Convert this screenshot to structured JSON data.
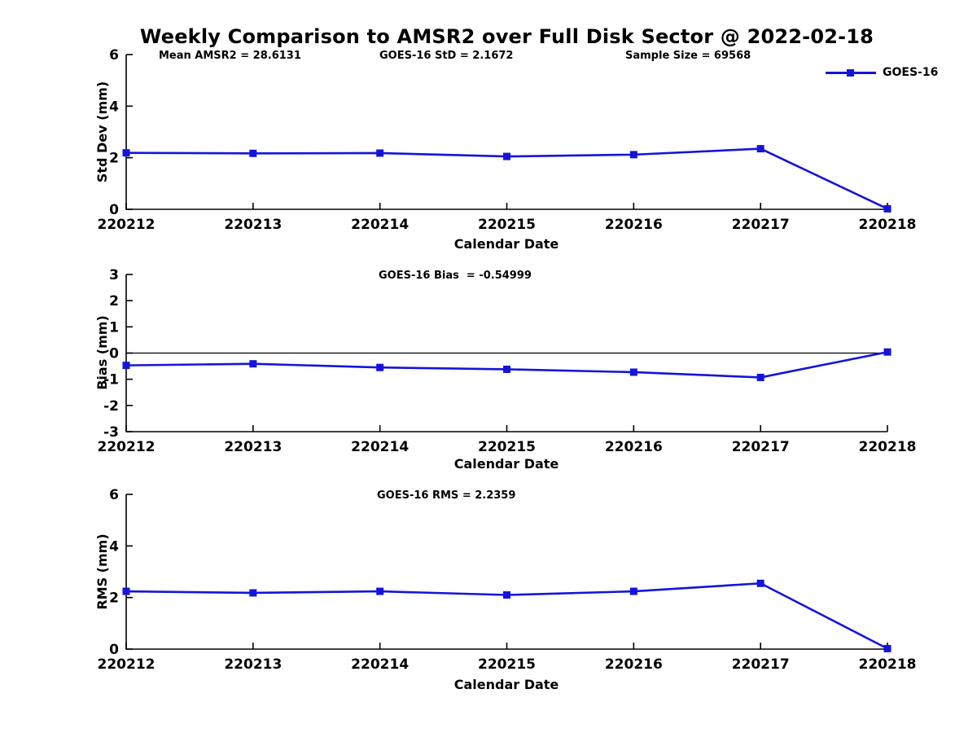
{
  "title": "Weekly Comparison to AMSR2 over Full Disk Sector @ 2022-02-18",
  "legend": {
    "label": "GOES-16"
  },
  "colors": {
    "series": "#1414dc",
    "axis": "#000000",
    "zero_line": "#000000",
    "text": "#000000",
    "background": "#ffffff"
  },
  "chart_data": [
    {
      "type": "line",
      "marker": "square",
      "xlabel": "Calendar Date",
      "ylabel": "Std Dev (mm)",
      "categories": [
        "220212",
        "220213",
        "220214",
        "220215",
        "220216",
        "220217",
        "220218"
      ],
      "series": [
        {
          "name": "GOES-16",
          "values": [
            2.19,
            2.17,
            2.18,
            2.05,
            2.12,
            2.35,
            0.02
          ]
        }
      ],
      "ylim": [
        0,
        6
      ],
      "yticks": [
        0,
        2,
        4,
        6
      ],
      "zero_line": false,
      "grid": false,
      "legend_position": "top-right",
      "annotations": [
        "Mean AMSR2 = 28.6131",
        "GOES-16 StD = 2.1672",
        "Sample Size = 69568"
      ]
    },
    {
      "type": "line",
      "marker": "square",
      "xlabel": "Calendar Date",
      "ylabel": "Bias (mm)",
      "categories": [
        "220212",
        "220213",
        "220214",
        "220215",
        "220216",
        "220217",
        "220218"
      ],
      "series": [
        {
          "name": "GOES-16",
          "values": [
            -0.47,
            -0.41,
            -0.55,
            -0.62,
            -0.73,
            -0.93,
            0.04
          ]
        }
      ],
      "ylim": [
        -3,
        3
      ],
      "yticks": [
        -3,
        -2,
        -1,
        0,
        1,
        2,
        3
      ],
      "zero_line": true,
      "grid": false,
      "legend_position": "none",
      "annotations": [
        "GOES-16 Bias  = -0.54999"
      ]
    },
    {
      "type": "line",
      "marker": "square",
      "xlabel": "Calendar Date",
      "ylabel": "RMS (mm)",
      "categories": [
        "220212",
        "220213",
        "220214",
        "220215",
        "220216",
        "220217",
        "220218"
      ],
      "series": [
        {
          "name": "GOES-16",
          "values": [
            2.24,
            2.18,
            2.24,
            2.1,
            2.24,
            2.55,
            0.02
          ]
        }
      ],
      "ylim": [
        0,
        6
      ],
      "yticks": [
        0,
        2,
        4,
        6
      ],
      "zero_line": false,
      "grid": false,
      "legend_position": "none",
      "annotations": [
        "GOES-16 RMS = 2.2359"
      ]
    }
  ]
}
